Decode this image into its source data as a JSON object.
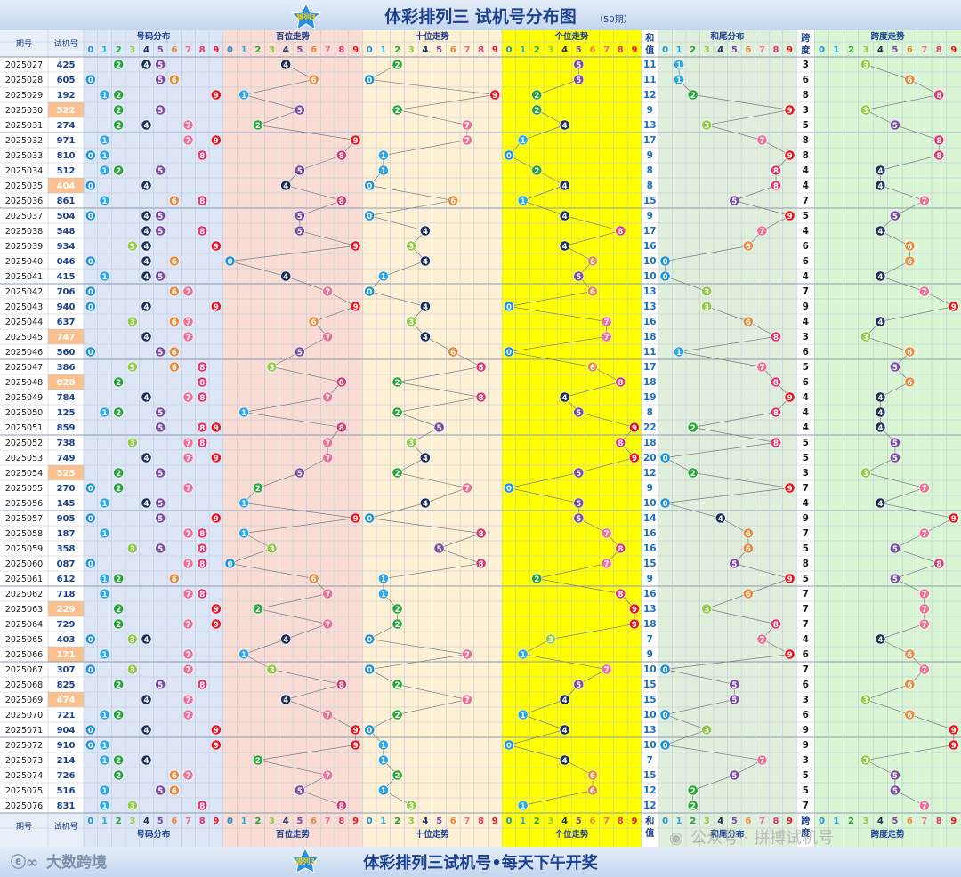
{
  "header": {
    "title": "体彩排列三 试机号分布图",
    "subtitle": "（50期）",
    "logo_text": "排列3"
  },
  "footer": {
    "title": "体彩排列三试机号•每天下午开奖",
    "brand": "大数跨境",
    "watermark": "公众号 · 拼搏试机号",
    "logo_text": "排列3"
  },
  "columns": {
    "period": "期号",
    "number": "试机号",
    "distribution": "号码分布",
    "hundreds": "百位走势",
    "tens": "十位走势",
    "units": "个位走势",
    "sum_top": "和",
    "sum_bottom": "值",
    "tail": "和尾分布",
    "span_top": "跨",
    "span_bottom": "度",
    "span_trend": "跨度走势"
  },
  "digits": [
    "0",
    "1",
    "2",
    "3",
    "4",
    "5",
    "6",
    "7",
    "8",
    "9"
  ],
  "colors": {
    "0": "#1e90d8",
    "1": "#2ba8e6",
    "2": "#25a53a",
    "3": "#8fcb44",
    "4": "#1b2e5a",
    "5": "#7b4aa6",
    "6": "#e88a3a",
    "7": "#ef6f97",
    "8": "#e0356e",
    "9": "#e8141e",
    "header_bg": "#cfe0f3",
    "title": "#1c3f8f",
    "highlight_row": "#fbc08f",
    "units_bg": "#ffff00"
  },
  "chart_data": {
    "type": "table",
    "title": "体彩排列三 试机号分布图",
    "rows": [
      {
        "period": "2025027",
        "number": "425",
        "sum": "11",
        "span": "3"
      },
      {
        "period": "2025028",
        "number": "605",
        "sum": "11",
        "span": "6"
      },
      {
        "period": "2025029",
        "number": "192",
        "sum": "12",
        "span": "8"
      },
      {
        "period": "2025030",
        "number": "522",
        "sum": "9",
        "span": "3",
        "highlight": true
      },
      {
        "period": "2025031",
        "number": "274",
        "sum": "13",
        "span": "5"
      },
      {
        "period": "2025032",
        "number": "971",
        "sum": "17",
        "span": "8"
      },
      {
        "period": "2025033",
        "number": "810",
        "sum": "9",
        "span": "8"
      },
      {
        "period": "2025034",
        "number": "512",
        "sum": "8",
        "span": "4"
      },
      {
        "period": "2025035",
        "number": "404",
        "sum": "8",
        "span": "4",
        "highlight": true
      },
      {
        "period": "2025036",
        "number": "861",
        "sum": "15",
        "span": "7"
      },
      {
        "period": "2025037",
        "number": "504",
        "sum": "9",
        "span": "5"
      },
      {
        "period": "2025038",
        "number": "548",
        "sum": "17",
        "span": "4"
      },
      {
        "period": "2025039",
        "number": "934",
        "sum": "16",
        "span": "6"
      },
      {
        "period": "2025040",
        "number": "046",
        "sum": "10",
        "span": "6"
      },
      {
        "period": "2025041",
        "number": "415",
        "sum": "10",
        "span": "4"
      },
      {
        "period": "2025042",
        "number": "706",
        "sum": "13",
        "span": "7"
      },
      {
        "period": "2025043",
        "number": "940",
        "sum": "13",
        "span": "9"
      },
      {
        "period": "2025044",
        "number": "637",
        "sum": "16",
        "span": "4"
      },
      {
        "period": "2025045",
        "number": "747",
        "sum": "18",
        "span": "3",
        "highlight": true
      },
      {
        "period": "2025046",
        "number": "560",
        "sum": "11",
        "span": "6"
      },
      {
        "period": "2025047",
        "number": "386",
        "sum": "17",
        "span": "5"
      },
      {
        "period": "2025048",
        "number": "828",
        "sum": "18",
        "span": "6",
        "highlight": true
      },
      {
        "period": "2025049",
        "number": "784",
        "sum": "19",
        "span": "4"
      },
      {
        "period": "2025050",
        "number": "125",
        "sum": "8",
        "span": "4"
      },
      {
        "period": "2025051",
        "number": "859",
        "sum": "22",
        "span": "4"
      },
      {
        "period": "2025052",
        "number": "738",
        "sum": "18",
        "span": "5"
      },
      {
        "period": "2025053",
        "number": "749",
        "sum": "20",
        "span": "5"
      },
      {
        "period": "2025054",
        "number": "525",
        "sum": "12",
        "span": "3",
        "highlight": true
      },
      {
        "period": "2025055",
        "number": "270",
        "sum": "9",
        "span": "7"
      },
      {
        "period": "2025056",
        "number": "145",
        "sum": "10",
        "span": "4"
      },
      {
        "period": "2025057",
        "number": "905",
        "sum": "14",
        "span": "9"
      },
      {
        "period": "2025058",
        "number": "187",
        "sum": "16",
        "span": "7"
      },
      {
        "period": "2025059",
        "number": "358",
        "sum": "16",
        "span": "5"
      },
      {
        "period": "2025060",
        "number": "087",
        "sum": "15",
        "span": "8"
      },
      {
        "period": "2025061",
        "number": "612",
        "sum": "9",
        "span": "5"
      },
      {
        "period": "2025062",
        "number": "718",
        "sum": "16",
        "span": "7"
      },
      {
        "period": "2025063",
        "number": "229",
        "sum": "13",
        "span": "7",
        "highlight": true
      },
      {
        "period": "2025064",
        "number": "729",
        "sum": "18",
        "span": "7"
      },
      {
        "period": "2025065",
        "number": "403",
        "sum": "7",
        "span": "4"
      },
      {
        "period": "2025066",
        "number": "171",
        "sum": "9",
        "span": "6",
        "highlight": true
      },
      {
        "period": "2025067",
        "number": "307",
        "sum": "10",
        "span": "7"
      },
      {
        "period": "2025068",
        "number": "825",
        "sum": "15",
        "span": "6"
      },
      {
        "period": "2025069",
        "number": "474",
        "sum": "15",
        "span": "3",
        "highlight": true
      },
      {
        "period": "2025070",
        "number": "721",
        "sum": "10",
        "span": "6"
      },
      {
        "period": "2025071",
        "number": "904",
        "sum": "13",
        "span": "9"
      },
      {
        "period": "2025072",
        "number": "910",
        "sum": "10",
        "span": "9"
      },
      {
        "period": "2025073",
        "number": "214",
        "sum": "7",
        "span": "3"
      },
      {
        "period": "2025074",
        "number": "726",
        "sum": "15",
        "span": "5"
      },
      {
        "period": "2025075",
        "number": "516",
        "sum": "12",
        "span": "5"
      },
      {
        "period": "2025076",
        "number": "831",
        "sum": "12",
        "span": "7"
      }
    ]
  }
}
